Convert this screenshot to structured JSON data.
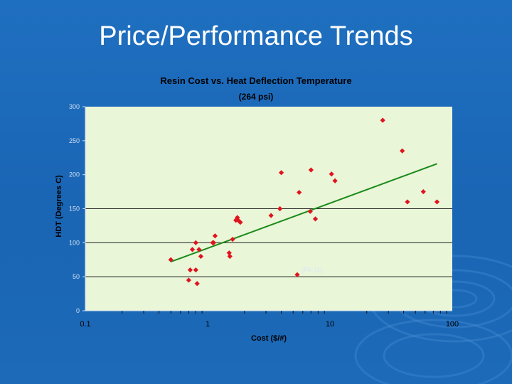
{
  "slide": {
    "title": "Price/Performance Trends"
  },
  "colors": {
    "background": "#1c6ab8",
    "plot_area": "#eaf6d8",
    "marker": "#e0141e",
    "trendline": "#1a8a1a"
  },
  "chart_data": {
    "type": "scatter",
    "title": "Resin Cost vs. Heat Deflection Temperature",
    "subtitle": "(264 psi)",
    "xlabel": "Cost ($/#)",
    "ylabel": "HDT (Degrees C)",
    "x_scale": "log",
    "xlim": [
      0.1,
      100
    ],
    "ylim": [
      0,
      300
    ],
    "x_ticks": [
      "0.1",
      "1",
      "10",
      "100"
    ],
    "y_ticks": [
      "0",
      "50",
      "100",
      "150",
      "200",
      "250",
      "300"
    ],
    "grid": "horizontal",
    "annotation": {
      "text": "(PA-11)",
      "x": 5.4,
      "y": 53
    },
    "points": [
      {
        "x": 0.5,
        "y": 75
      },
      {
        "x": 0.7,
        "y": 45
      },
      {
        "x": 0.72,
        "y": 60
      },
      {
        "x": 0.75,
        "y": 90
      },
      {
        "x": 0.8,
        "y": 100
      },
      {
        "x": 0.8,
        "y": 60
      },
      {
        "x": 0.82,
        "y": 40
      },
      {
        "x": 0.85,
        "y": 90
      },
      {
        "x": 0.88,
        "y": 80
      },
      {
        "x": 1.1,
        "y": 100
      },
      {
        "x": 1.12,
        "y": 100
      },
      {
        "x": 1.15,
        "y": 110
      },
      {
        "x": 1.5,
        "y": 85
      },
      {
        "x": 1.52,
        "y": 80
      },
      {
        "x": 1.6,
        "y": 105
      },
      {
        "x": 1.7,
        "y": 133
      },
      {
        "x": 1.75,
        "y": 137
      },
      {
        "x": 1.8,
        "y": 132
      },
      {
        "x": 1.85,
        "y": 130
      },
      {
        "x": 3.3,
        "y": 140
      },
      {
        "x": 3.9,
        "y": 150
      },
      {
        "x": 4.0,
        "y": 203
      },
      {
        "x": 5.4,
        "y": 53
      },
      {
        "x": 5.6,
        "y": 174
      },
      {
        "x": 6.9,
        "y": 146
      },
      {
        "x": 7.0,
        "y": 207
      },
      {
        "x": 7.6,
        "y": 135
      },
      {
        "x": 10.3,
        "y": 201
      },
      {
        "x": 11.0,
        "y": 191
      },
      {
        "x": 27,
        "y": 280
      },
      {
        "x": 39,
        "y": 235
      },
      {
        "x": 43,
        "y": 160
      },
      {
        "x": 58,
        "y": 175
      },
      {
        "x": 75,
        "y": 160
      }
    ],
    "trendline": [
      {
        "x": 0.5,
        "y": 72
      },
      {
        "x": 75,
        "y": 216
      }
    ]
  }
}
